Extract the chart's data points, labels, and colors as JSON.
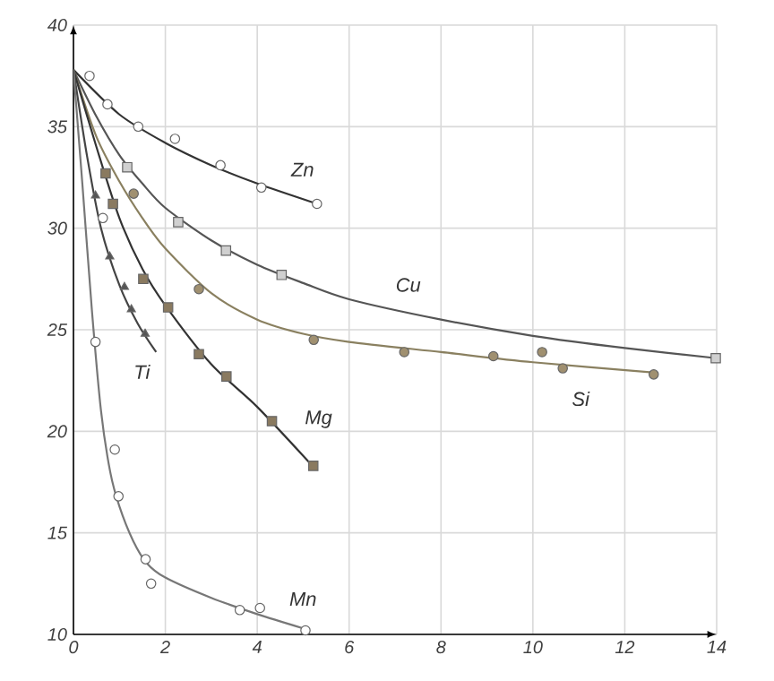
{
  "chart_data": {
    "type": "scatter",
    "xlim": [
      0,
      14
    ],
    "ylim": [
      10,
      40
    ],
    "xticks": [
      0,
      2,
      4,
      6,
      8,
      10,
      12,
      14
    ],
    "yticks": [
      10,
      15,
      20,
      25,
      30,
      35,
      40
    ],
    "grid": true,
    "series": [
      {
        "type": "line",
        "color": "#333333",
        "x": [
          0,
          1,
          2,
          3,
          4,
          5.3
        ],
        "values": [
          37.8,
          35.6,
          34.2,
          33.1,
          32.2,
          31.2
        ]
      },
      {
        "marker": "circle",
        "color": "#ffffff",
        "x": [
          0.35,
          0.74,
          1.41,
          2.21,
          3.2,
          4.09,
          5.3
        ],
        "values": [
          37.5,
          36.1,
          35.0,
          34.4,
          33.1,
          32.0,
          31.2
        ]
      },
      {
        "type": "line",
        "color": "#555555",
        "x": [
          0,
          0.5,
          1,
          1.5,
          2,
          3,
          4,
          5,
          6,
          8,
          10,
          12,
          14
        ],
        "values": [
          37.8,
          35.5,
          33.6,
          32.2,
          31.0,
          29.4,
          28.2,
          27.3,
          26.5,
          25.5,
          24.7,
          24.1,
          23.6
        ]
      },
      {
        "marker": "square",
        "color": "#d0d0d0",
        "x": [
          1.17,
          2.28,
          3.32,
          4.53,
          13.98
        ],
        "values": [
          33.0,
          30.3,
          28.9,
          27.7,
          23.6
        ]
      },
      {
        "type": "line",
        "color": "#8a8060",
        "x": [
          0,
          0.5,
          1,
          1.5,
          2,
          3,
          4,
          5,
          6,
          8,
          10,
          12.6
        ],
        "values": [
          37.8,
          34.5,
          32.3,
          30.5,
          29.0,
          26.8,
          25.5,
          24.8,
          24.4,
          23.9,
          23.4,
          22.9
        ]
      },
      {
        "marker": "circle",
        "color": "#a09070",
        "x": [
          1.31,
          2.73,
          5.23,
          7.2,
          9.14,
          10.2,
          10.65,
          12.63
        ],
        "values": [
          31.7,
          27.0,
          24.5,
          23.9,
          23.7,
          23.9,
          23.1,
          22.8
        ]
      },
      {
        "type": "line",
        "color": "#333333",
        "x": [
          0,
          0.5,
          1,
          1.5,
          2,
          3,
          4,
          5.2
        ],
        "values": [
          37.8,
          34.0,
          30.5,
          28.0,
          26.2,
          23.3,
          21.2,
          18.3
        ]
      },
      {
        "marker": "square",
        "color": "#8a7a60",
        "x": [
          0.7,
          0.86,
          1.52,
          2.06,
          2.73,
          3.33,
          4.32,
          5.22
        ],
        "values": [
          32.7,
          31.2,
          27.5,
          26.1,
          23.8,
          22.7,
          20.5,
          18.3
        ]
      },
      {
        "type": "line",
        "color": "#444444",
        "x": [
          0,
          0.3,
          0.6,
          1,
          1.4,
          1.8
        ],
        "values": [
          37.8,
          33.5,
          30.0,
          27.2,
          25.3,
          23.9
        ]
      },
      {
        "marker": "triangle",
        "color": "#555555",
        "x": [
          0.48,
          0.79,
          1.11,
          1.26,
          1.56
        ],
        "values": [
          31.6,
          28.6,
          27.1,
          26.0,
          24.8
        ]
      },
      {
        "type": "line",
        "color": "#777777",
        "x": [
          0,
          0.2,
          0.4,
          0.6,
          0.8,
          1,
          1.3,
          1.6,
          2,
          3,
          4,
          5
        ],
        "values": [
          37.8,
          32.0,
          26.0,
          21.0,
          18.0,
          16.3,
          14.6,
          13.5,
          12.8,
          11.8,
          11.0,
          10.3
        ]
      },
      {
        "marker": "circle",
        "color": "#ffffff",
        "x": [
          0.48,
          0.64,
          0.9,
          0.98,
          1.57,
          1.69,
          3.62,
          4.06,
          5.05
        ],
        "values": [
          24.4,
          30.5,
          19.1,
          16.8,
          13.7,
          12.5,
          11.2,
          11.3,
          10.2
        ]
      }
    ],
    "annotations": [
      {
        "text": "Zn",
        "x": 4.09,
        "y": 32.0
      },
      {
        "text": "Cu",
        "x": 6,
        "y": 26.5
      },
      {
        "text": "Si",
        "x": 10.65,
        "y": 23.1
      },
      {
        "text": "Mg",
        "x": 4.32,
        "y": 20.5
      },
      {
        "text": "Ti",
        "x": 1.8,
        "y": 23.9
      },
      {
        "text": "Mn",
        "x": 4.06,
        "y": 11.3
      }
    ]
  }
}
